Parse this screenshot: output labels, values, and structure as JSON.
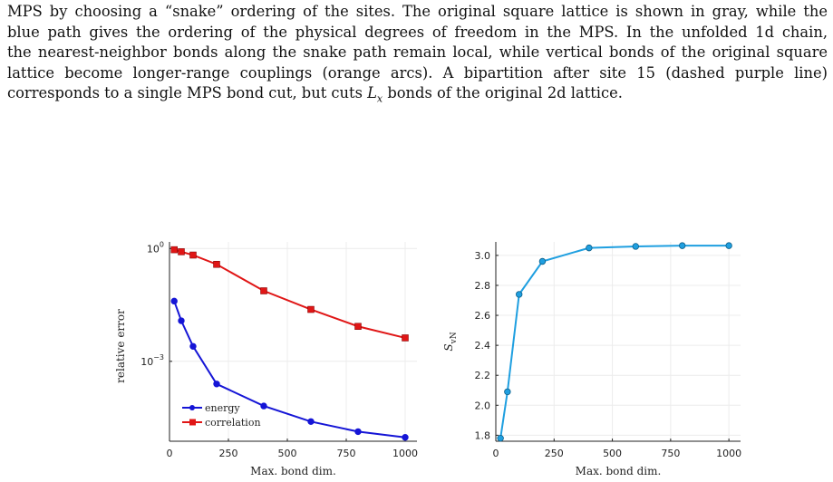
{
  "caption": {
    "lines": [
      "MPS by choosing a “snake” ordering of the sites. The original square lattice is shown in gray, while the",
      "blue path gives the ordering of the physical degrees of freedom in the MPS. In the unfolded 1d chain,",
      "the nearest-neighbor bonds along the snake path remain local, while vertical bonds of the original square",
      "lattice become longer-range couplings (orange arcs). A bipartition after site 15 (dashed purple line)",
      "corresponds to a single MPS bond cut, but cuts L_x bonds of the original 2d lattice."
    ],
    "math_symbol": "L",
    "math_subscript": "x",
    "last_line_before": "corresponds to a single MPS bond cut, but cuts ",
    "last_line_after": " bonds of the original 2d lattice."
  },
  "chart_data": [
    {
      "type": "line",
      "yscale": "log",
      "ylabel": "relative error",
      "xlabel": "Max. bond dim.",
      "xlim": [
        0,
        1050
      ],
      "ylim": [
        7.5e-06,
        1.5
      ],
      "xticks": [
        0,
        250,
        500,
        750,
        1000
      ],
      "yticks": [
        {
          "value": 1,
          "base": "10",
          "exp": "0"
        },
        {
          "value": 0.001,
          "base": "10",
          "exp": "−3"
        }
      ],
      "legend": "bottom-left",
      "series": [
        {
          "name": "energy",
          "color": "#1515d6",
          "marker": "circle",
          "x": [
            20,
            50,
            100,
            200,
            400,
            600,
            800,
            1000
          ],
          "y": [
            0.04,
            0.012,
            0.0025,
            0.00025,
            6.5e-05,
            2.5e-05,
            1.35e-05,
            9.5e-06
          ]
        },
        {
          "name": "correlation",
          "color": "#e01616",
          "marker": "square",
          "x": [
            20,
            50,
            100,
            200,
            400,
            600,
            800,
            1000
          ],
          "y": [
            0.93,
            0.82,
            0.67,
            0.38,
            0.075,
            0.024,
            0.0085,
            0.0042
          ]
        }
      ]
    },
    {
      "type": "line",
      "ylabel": "S_vN",
      "ylabel_main": "S",
      "ylabel_sub": "vN",
      "xlabel": "Max. bond dim.",
      "xlim": [
        0,
        1050
      ],
      "ylim": [
        1.76,
        3.09
      ],
      "xticks": [
        0,
        250,
        500,
        750,
        1000
      ],
      "yticks": [
        "1.8",
        "2.0",
        "2.2",
        "2.4",
        "2.6",
        "2.8",
        "3.0"
      ],
      "series": [
        {
          "color": "#1f9fe0",
          "marker": "circle",
          "x": [
            20,
            50,
            100,
            200,
            400,
            600,
            800,
            1000
          ],
          "y": [
            1.78,
            2.09,
            2.74,
            2.96,
            3.05,
            3.06,
            3.065,
            3.065
          ]
        }
      ]
    }
  ]
}
